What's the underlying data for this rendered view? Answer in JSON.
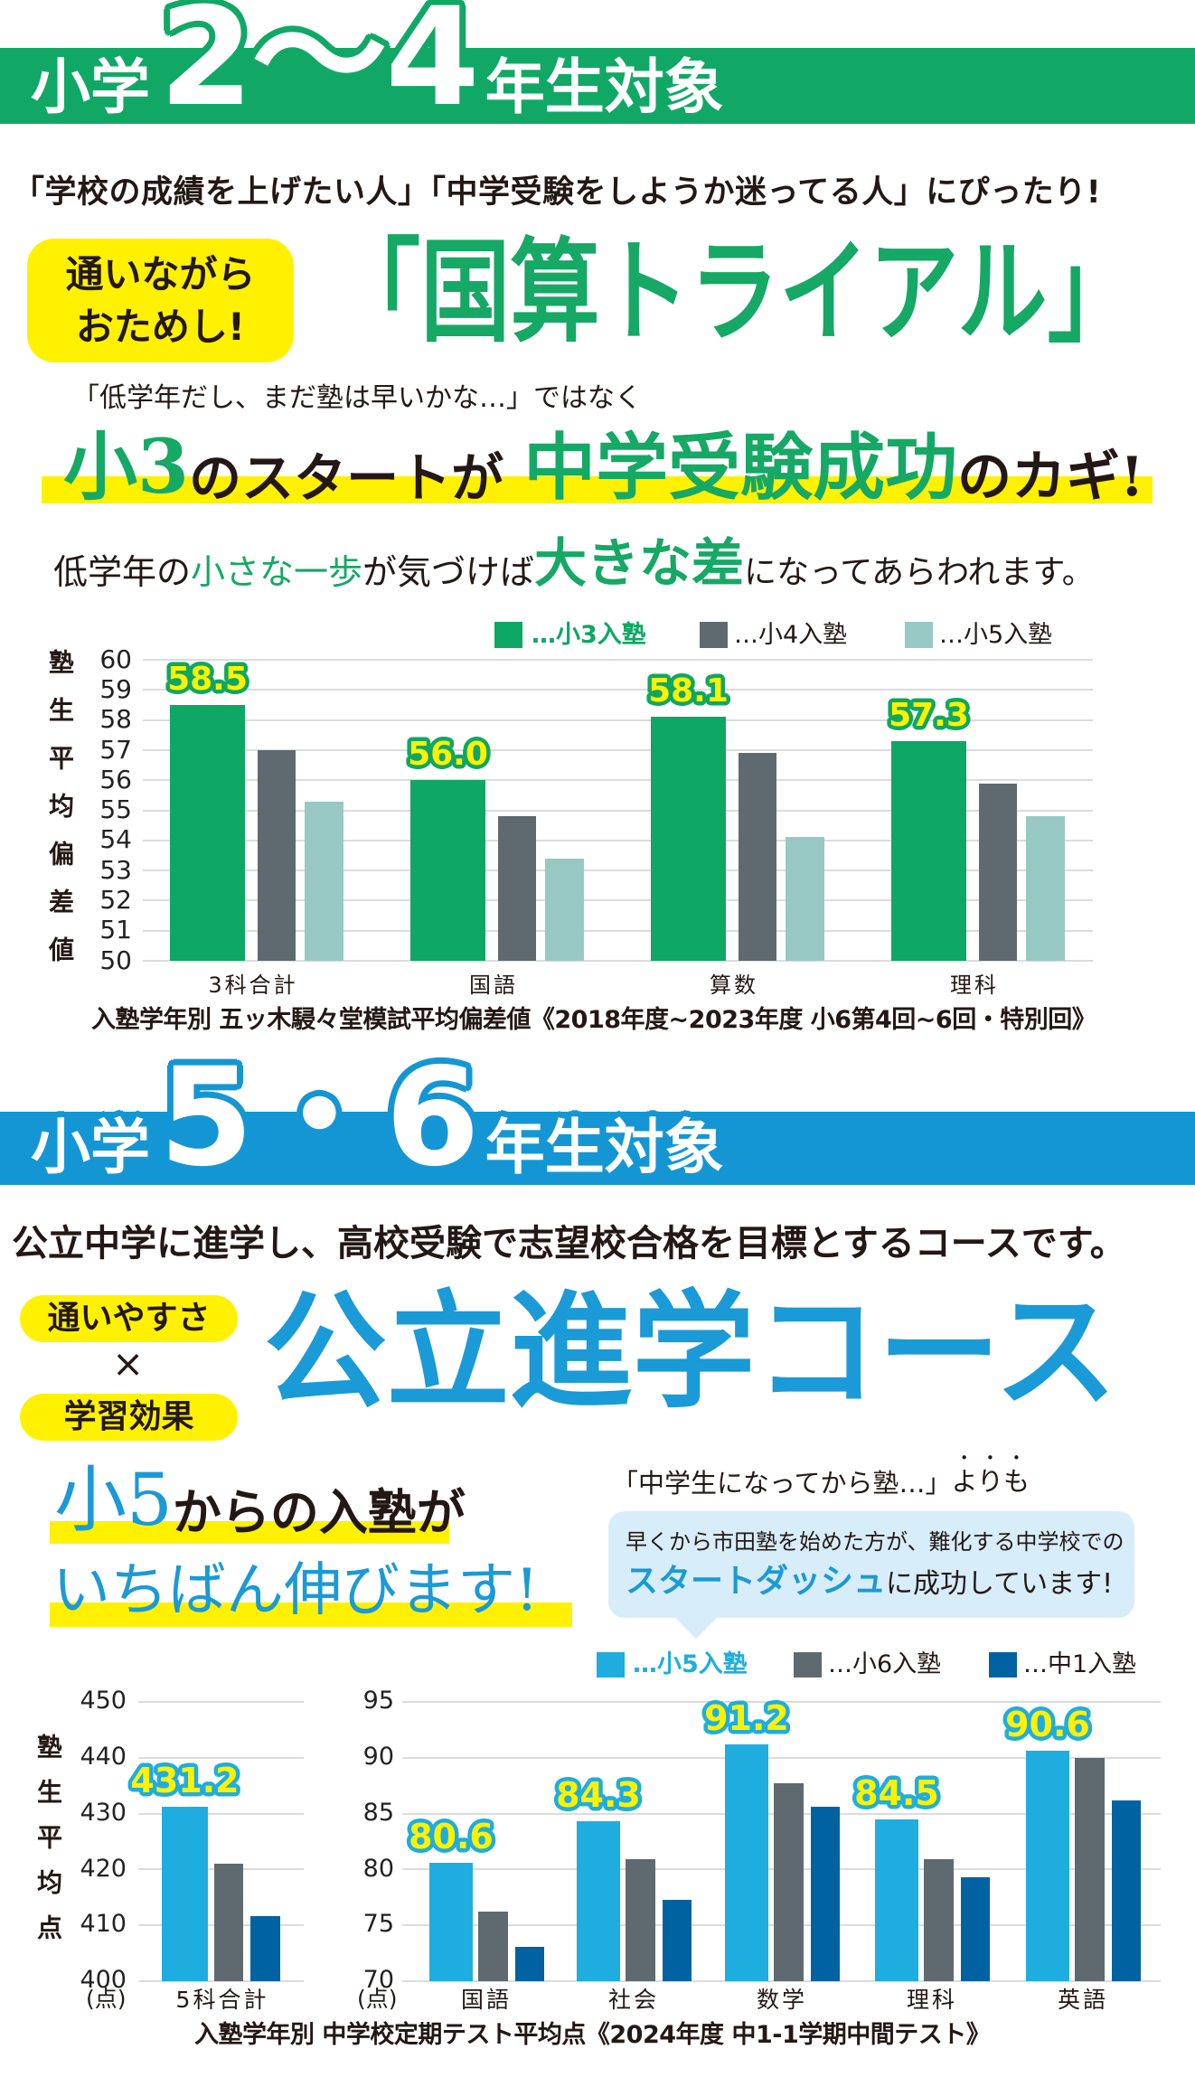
{
  "section1": {
    "banner": {
      "prefix": "小学",
      "grades": "2〜4",
      "suffix": "年生対象",
      "color": "#11a866"
    },
    "subtitle": "「学校の成績を上げたい人」「中学受験をしようか迷ってる人」にぴったり!",
    "badge": {
      "line1": "通いながら",
      "line2": "おためし!"
    },
    "course_title": "「国算トライアル」",
    "lead": "「低学年だし、まだ塾は早いかな…」ではなく",
    "headline": {
      "p1": "小3",
      "p2": "のスタートが",
      "p3": "中学受験成功",
      "p4": "のカギ!"
    },
    "tagline": {
      "p1": "低学年の",
      "p2": "小さな一歩",
      "p3": "が気づけば",
      "p4": "大きな差",
      "p5": "になってあらわれます。"
    },
    "caption": "入塾学年別 五ッ木駸々堂模試平均偏差値《2018年度~2023年度 小6第4回~6回・特別回》"
  },
  "section2": {
    "banner": {
      "prefix": "小学",
      "grades": "5・6",
      "suffix": "年生対象",
      "color": "#1596d4"
    },
    "subtitle": "公立中学に進学し、高校受験で志望校合格を目標とするコースです。",
    "pill1": "通いやすさ",
    "times": "×",
    "pill2": "学習効果",
    "course_title": "公立進学コース",
    "headline1": {
      "p1": "小5",
      "p2": "からの入塾が"
    },
    "headline2": "いちばん伸びます!",
    "callout_lead": {
      "p1": "「中学生になってから塾…」 ",
      "p2": "よりも"
    },
    "bubble": {
      "line1": "早くから市田塾を始めた方が、難化する中学校での",
      "line2_blue": "スタートダッシュ",
      "line2_rest": "に成功しています!"
    },
    "caption": "入塾学年別 中学校定期テスト平均点《2024年度 中1-1学期中間テスト》"
  },
  "chart_data": [
    {
      "type": "bar",
      "title": "入塾学年別 五ッ木駸々堂模試平均偏差値《2018年度~2023年度 小6第4回~6回・特別回》",
      "xlabel": "",
      "ylabel": "塾生平均偏差値",
      "categories": [
        "3科合計",
        "国語",
        "算数",
        "理科"
      ],
      "series": [
        {
          "name": "…小3入塾",
          "color": "#0ea763",
          "values": [
            58.5,
            56.0,
            58.1,
            57.3
          ]
        },
        {
          "name": "…小4入塾",
          "color": "#5f6a70",
          "values": [
            57.0,
            54.8,
            56.9,
            55.9
          ]
        },
        {
          "name": "…小5入塾",
          "color": "#97c8c4",
          "values": [
            55.3,
            53.4,
            54.1,
            54.8
          ]
        }
      ],
      "data_labels": [
        "58.5",
        "56.0",
        "58.1",
        "57.3"
      ],
      "ylim": [
        50,
        60
      ],
      "yticks": [
        60,
        59,
        58,
        57,
        56,
        55,
        54,
        53,
        52,
        51,
        50
      ],
      "grid": true,
      "legend_position": "top-right"
    },
    {
      "type": "bar",
      "title": "入塾学年別 中学校定期テスト平均点《2024年度 中1-1学期中間テスト》",
      "xlabel": "",
      "ylabel": "塾生平均点",
      "unit": "(点)",
      "categories": [
        "5科合計"
      ],
      "series": [
        {
          "name": "…小5入塾",
          "color": "#1faddf",
          "values": [
            431.2
          ]
        },
        {
          "name": "…小6入塾",
          "color": "#5f6a70",
          "values": [
            421.0
          ]
        },
        {
          "name": "…中1入塾",
          "color": "#0062a1",
          "values": [
            411.7
          ]
        }
      ],
      "data_labels": [
        "431.2"
      ],
      "ylim": [
        400,
        450
      ],
      "yticks": [
        450,
        440,
        430,
        420,
        410,
        400
      ],
      "grid": true,
      "legend_position": "top-right"
    },
    {
      "type": "bar",
      "title": "入塾学年別 中学校定期テスト平均点《2024年度 中1-1学期中間テスト》",
      "xlabel": "",
      "ylabel": "",
      "unit": "(点)",
      "categories": [
        "国語",
        "社会",
        "数学",
        "理科",
        "英語"
      ],
      "series": [
        {
          "name": "…小5入塾",
          "color": "#1faddf",
          "values": [
            80.6,
            84.3,
            91.2,
            84.5,
            90.6
          ]
        },
        {
          "name": "…小6入塾",
          "color": "#5f6a70",
          "values": [
            76.2,
            80.9,
            87.7,
            80.9,
            90.0
          ]
        },
        {
          "name": "…中1入塾",
          "color": "#0062a1",
          "values": [
            73.1,
            77.3,
            85.6,
            79.3,
            86.2
          ]
        }
      ],
      "data_labels": [
        "80.6",
        "84.3",
        "91.2",
        "84.5",
        "90.6"
      ],
      "ylim": [
        70,
        95
      ],
      "yticks": [
        95,
        90,
        85,
        80,
        75,
        70
      ],
      "grid": true,
      "legend_position": "top-right"
    }
  ]
}
